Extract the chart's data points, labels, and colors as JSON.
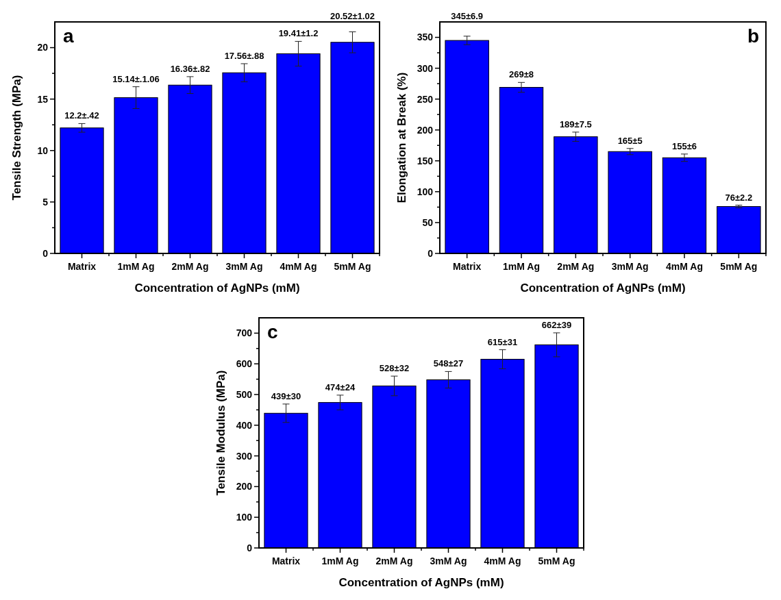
{
  "chart_data": [
    {
      "type": "bar",
      "title": "a",
      "xlabel": "Concentration of AgNPs (mM)",
      "ylabel": "Tensile Strength (MPa)",
      "categories": [
        "Matrix",
        "1mM Ag",
        "2mM Ag",
        "3mM Ag",
        "4mM Ag",
        "5mM Ag"
      ],
      "values": [
        12.2,
        15.14,
        16.36,
        17.56,
        19.41,
        20.52
      ],
      "errors": [
        0.42,
        1.06,
        0.82,
        0.88,
        1.2,
        1.02
      ],
      "value_labels": [
        "12.2±.42",
        "15.14±.1.06",
        "16.36±.82",
        "17.56±.88",
        "19.41±1.2",
        "20.52±1.02"
      ],
      "color": "#0000ff",
      "ylim": [
        0,
        22.5
      ],
      "yticks": [
        0,
        {
          "value": 2.5,
          "label": null
        },
        5,
        {
          "value": 7.5,
          "label": null
        },
        10,
        {
          "value": 12.5,
          "label": null
        },
        15,
        {
          "value": 17.5,
          "label": null
        },
        20
      ]
    },
    {
      "type": "bar",
      "title": "b",
      "xlabel": "Concentration of AgNPs (mM)",
      "ylabel": "Elongation at Break (%)",
      "categories": [
        "Matrix",
        "1mM Ag",
        "2mM Ag",
        "3mM Ag",
        "4mM Ag",
        "5mM Ag"
      ],
      "values": [
        345,
        269,
        189,
        165,
        155,
        76
      ],
      "errors": [
        6.9,
        8,
        7.5,
        5,
        6,
        2.2
      ],
      "value_labels": [
        "345±6.9",
        "269±8",
        "189±7.5",
        "165±5",
        "155±6",
        "76±2.2"
      ],
      "color": "#0000ff",
      "ylim": [
        0,
        375
      ],
      "yticks": [
        0,
        {
          "value": 25,
          "label": null
        },
        50,
        {
          "value": 75,
          "label": null
        },
        100,
        {
          "value": 125,
          "label": null
        },
        150,
        {
          "value": 175,
          "label": null
        },
        200,
        {
          "value": 225,
          "label": null
        },
        250,
        {
          "value": 275,
          "label": null
        },
        300,
        {
          "value": 325,
          "label": null
        },
        350
      ]
    },
    {
      "type": "bar",
      "title": "c",
      "xlabel": "Concentration of AgNPs (mM)",
      "ylabel": "Tensile Modulus (MPa)",
      "categories": [
        "Matrix",
        "1mM Ag",
        "2mM Ag",
        "3mM Ag",
        "4mM Ag",
        "5mM Ag"
      ],
      "values": [
        439,
        474,
        528,
        548,
        615,
        662
      ],
      "errors": [
        30,
        24,
        32,
        27,
        31,
        39
      ],
      "value_labels": [
        "439±30",
        "474±24",
        "528±32",
        "548±27",
        "615±31",
        "662±39"
      ],
      "color": "#0000ff",
      "ylim": [
        0,
        750
      ],
      "yticks": [
        0,
        {
          "value": 50,
          "label": null
        },
        100,
        {
          "value": 150,
          "label": null
        },
        200,
        {
          "value": 250,
          "label": null
        },
        300,
        {
          "value": 350,
          "label": null
        },
        400,
        {
          "value": 450,
          "label": null
        },
        500,
        {
          "value": 550,
          "label": null
        },
        600,
        {
          "value": 650,
          "label": null
        },
        700
      ]
    }
  ]
}
